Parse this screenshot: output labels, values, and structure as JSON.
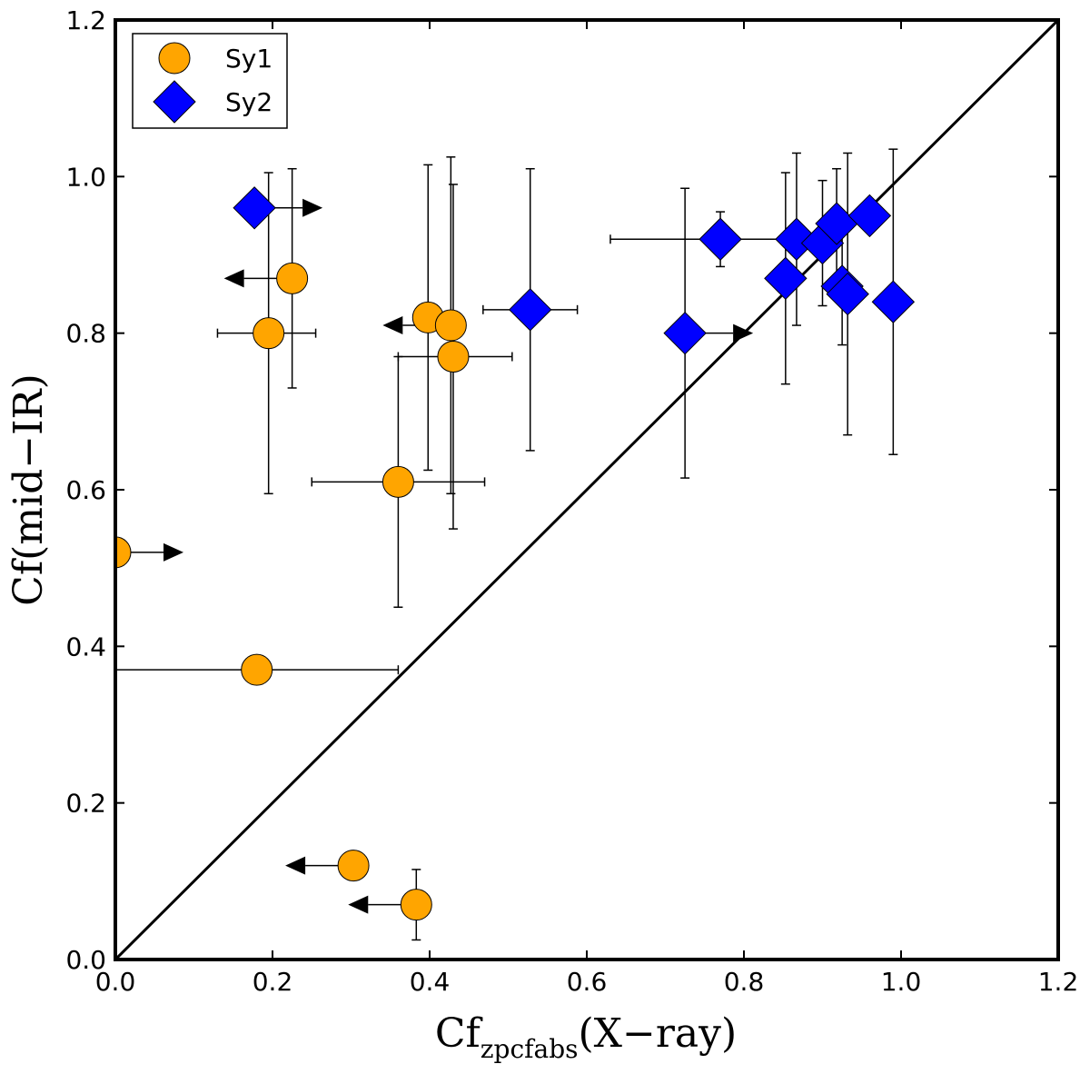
{
  "chart_data": {
    "type": "scatter",
    "title": "",
    "xlabel": "Cf",
    "xlabel_sub": "zpcfabs",
    "xlabel_suffix": "(X−ray)",
    "ylabel": "Cf(mid−IR)",
    "xlim": [
      0.0,
      1.2
    ],
    "ylim": [
      0.0,
      1.2
    ],
    "x_ticks": [
      "0.0",
      "0.2",
      "0.4",
      "0.6",
      "0.8",
      "1.0",
      "1.2"
    ],
    "y_ticks": [
      "0.0",
      "0.2",
      "0.4",
      "0.6",
      "0.8",
      "1.0",
      "1.2"
    ],
    "grid": false,
    "legend_position": "top-left",
    "reference_line": "y = x",
    "series": [
      {
        "name": "Sy1",
        "marker": "circle",
        "color": "#FFA500",
        "points": [
          {
            "x": 0.0,
            "y": 0.52,
            "xerr": [
              0,
              0
            ],
            "yerr": [
              0,
              0
            ],
            "arrow": "right"
          },
          {
            "x": 0.18,
            "y": 0.37,
            "xerr": [
              0.18,
              0.18
            ],
            "yerr": [
              0,
              0
            ],
            "arrow": null
          },
          {
            "x": 0.195,
            "y": 0.8,
            "xerr": [
              0.065,
              0.06
            ],
            "yerr": [
              0.205,
              0.205
            ],
            "arrow": null
          },
          {
            "x": 0.225,
            "y": 0.87,
            "xerr": [
              0,
              0
            ],
            "yerr": [
              0.14,
              0.14
            ],
            "arrow": "left"
          },
          {
            "x": 0.36,
            "y": 0.61,
            "xerr": [
              0.11,
              0.11
            ],
            "yerr": [
              0.16,
              0.16
            ],
            "arrow": null
          },
          {
            "x": 0.398,
            "y": 0.82,
            "xerr": [
              0,
              0
            ],
            "yerr": [
              0.195,
              0.195
            ],
            "arrow": null
          },
          {
            "x": 0.427,
            "y": 0.81,
            "xerr": [
              0,
              0
            ],
            "yerr": [
              0.215,
              0.215
            ],
            "arrow": "left"
          },
          {
            "x": 0.43,
            "y": 0.77,
            "xerr": [
              0.07,
              0.075
            ],
            "yerr": [
              0.22,
              0.22
            ],
            "arrow": null
          },
          {
            "x": 0.303,
            "y": 0.12,
            "xerr": [
              0,
              0
            ],
            "yerr": [
              0,
              0
            ],
            "arrow": "left"
          },
          {
            "x": 0.383,
            "y": 0.07,
            "xerr": [
              0,
              0
            ],
            "yerr": [
              0.045,
              0.045
            ],
            "arrow": "left"
          }
        ]
      },
      {
        "name": "Sy2",
        "marker": "diamond",
        "color": "#0000FF",
        "points": [
          {
            "x": 0.177,
            "y": 0.96,
            "xerr": [
              0,
              0
            ],
            "yerr": [
              0,
              0
            ],
            "arrow": "right"
          },
          {
            "x": 0.528,
            "y": 0.83,
            "xerr": [
              0.06,
              0.06
            ],
            "yerr": [
              0.18,
              0.18
            ],
            "arrow": null
          },
          {
            "x": 0.725,
            "y": 0.8,
            "xerr": [
              0,
              0
            ],
            "yerr": [
              0.185,
              0.185
            ],
            "arrow": "right"
          },
          {
            "x": 0.77,
            "y": 0.92,
            "xerr": [
              0.14,
              0.14
            ],
            "yerr": [
              0.035,
              0.035
            ],
            "arrow": null
          },
          {
            "x": 0.853,
            "y": 0.87,
            "xerr": [
              0,
              0
            ],
            "yerr": [
              0.135,
              0.135
            ],
            "arrow": null
          },
          {
            "x": 0.867,
            "y": 0.92,
            "xerr": [
              0,
              0
            ],
            "yerr": [
              0.11,
              0.11
            ],
            "arrow": null
          },
          {
            "x": 0.9,
            "y": 0.915,
            "xerr": [
              0,
              0
            ],
            "yerr": [
              0.08,
              0.08
            ],
            "arrow": null
          },
          {
            "x": 0.918,
            "y": 0.94,
            "xerr": [
              0,
              0
            ],
            "yerr": [
              0.07,
              0.07
            ],
            "arrow": null
          },
          {
            "x": 0.925,
            "y": 0.86,
            "xerr": [
              0,
              0
            ],
            "yerr": [
              0.075,
              0.075
            ],
            "arrow": null
          },
          {
            "x": 0.932,
            "y": 0.85,
            "xerr": [
              0,
              0
            ],
            "yerr": [
              0.18,
              0.18
            ],
            "arrow": null
          },
          {
            "x": 0.96,
            "y": 0.95,
            "xerr": [
              0,
              0
            ],
            "yerr": [
              0,
              0
            ],
            "arrow": null
          },
          {
            "x": 0.99,
            "y": 0.84,
            "xerr": [
              0,
              0
            ],
            "yerr": [
              0.195,
              0.195
            ],
            "arrow": null
          }
        ]
      }
    ]
  }
}
